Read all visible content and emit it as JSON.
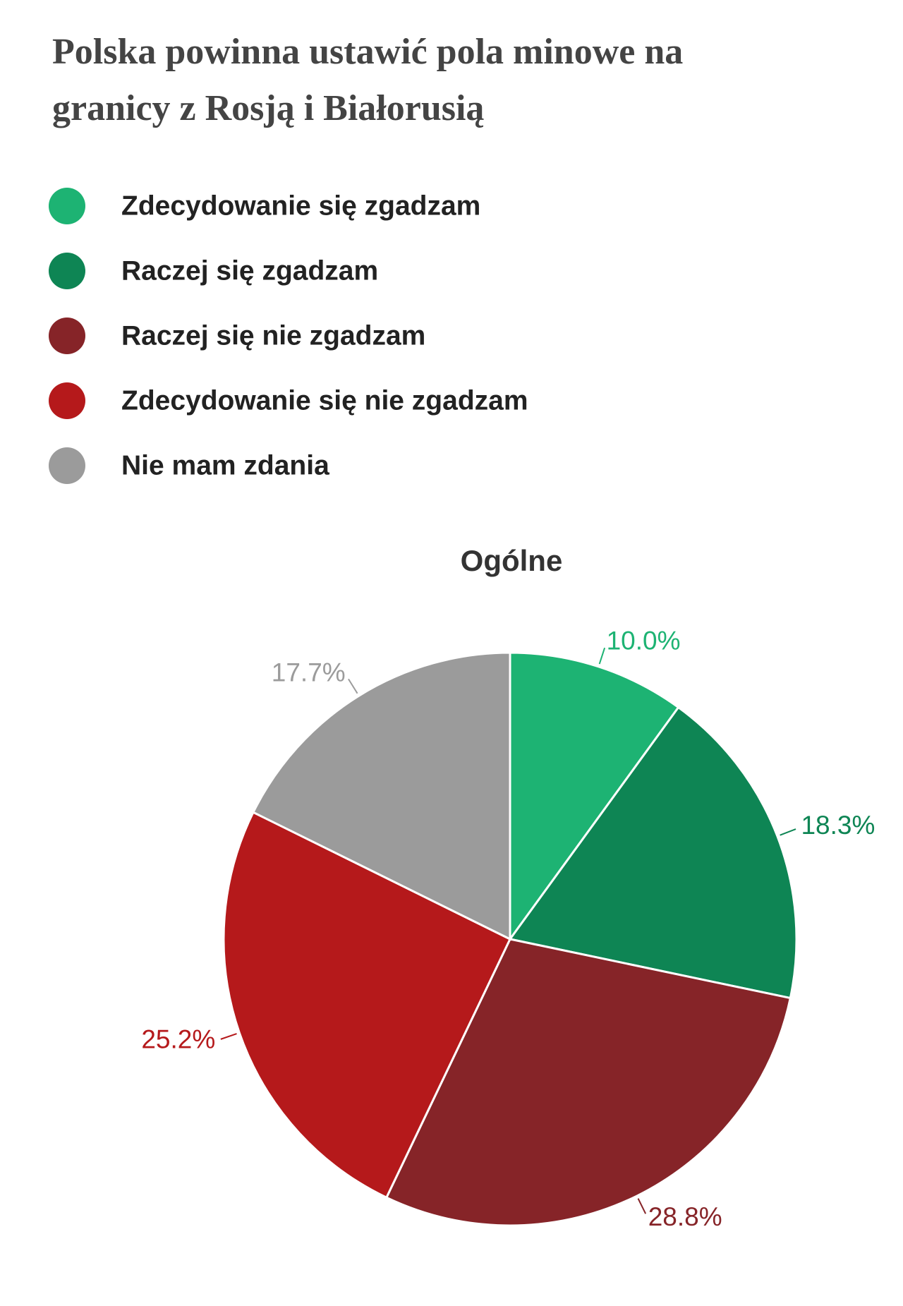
{
  "chart_data": {
    "type": "pie",
    "title": [
      "Polska powinna ustawić pola minowe na",
      "granicy z Rosją i Białorusią"
    ],
    "subtitle": "Ogólne",
    "categories": [
      "Zdecydowanie się zgadzam",
      "Raczej się zgadzam",
      "Raczej się nie zgadzam",
      "Zdecydowanie się nie zgadzam",
      "Nie mam zdania"
    ],
    "values": [
      10.0,
      18.3,
      28.8,
      25.2,
      17.7
    ],
    "value_labels": [
      "10.0%",
      "18.3%",
      "28.8%",
      "25.2%",
      "17.7%"
    ],
    "colors": [
      "#1db373",
      "#0e8554",
      "#862428",
      "#b5191b",
      "#9b9b9b"
    ]
  }
}
